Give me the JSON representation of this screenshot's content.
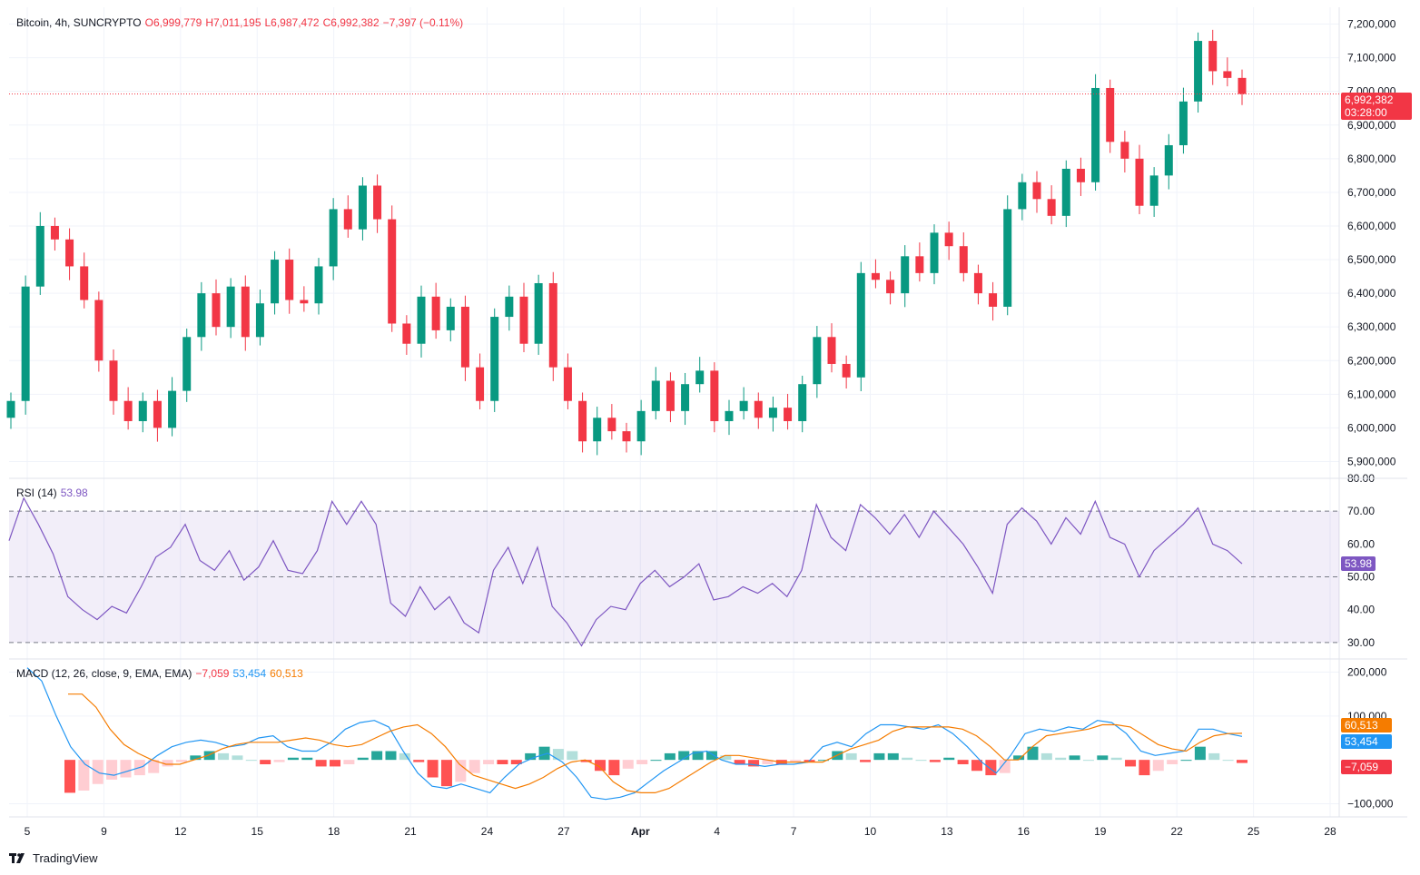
{
  "legend": {
    "symbol": "Bitcoin, 4h, SUNCRYPTO",
    "open": "O6,999,779",
    "high": "H7,011,195",
    "low": "L6,987,472",
    "close": "C6,992,382",
    "change": "−7,397 (−0.11%)"
  },
  "rsi_legend": {
    "name": "RSI (14)",
    "value": "53.98"
  },
  "macd_legend": {
    "name": "MACD (12, 26, close, 9, EMA, EMA)",
    "hist": "−7,059",
    "macd": "53,454",
    "signal": "60,513"
  },
  "badges": {
    "price": "6,992,382",
    "countdown": "03:28:00",
    "rsi": "53.98",
    "signal": "60,513",
    "macd": "53,454",
    "hist": "−7,059"
  },
  "brand": "TradingView",
  "colors": {
    "up": "#089981",
    "down": "#f23645",
    "rsi": "#7e57c2",
    "macd": "#2196f3",
    "signal": "#f57c00"
  },
  "chart_data": [
    {
      "type": "candlestick",
      "title": "Bitcoin, 4h, SUNCRYPTO",
      "ylim": [
        5850000,
        7250000
      ],
      "y_ticks": [
        "7,200,000",
        "7,100,000",
        "7,000,000",
        "6,900,000",
        "6,800,000",
        "6,700,000",
        "6,600,000",
        "6,500,000",
        "6,400,000",
        "6,300,000",
        "6,200,000",
        "6,100,000",
        "6,000,000",
        "5,900,000"
      ],
      "x_ticks": [
        "5",
        "9",
        "12",
        "15",
        "18",
        "21",
        "24",
        "27",
        "Apr",
        "4",
        "7",
        "10",
        "13",
        "16",
        "19",
        "22",
        "25",
        "28"
      ],
      "last_close": 6992382,
      "series": [
        {
          "name": "close",
          "values": [
            6080000,
            6420000,
            6600000,
            6560000,
            6480000,
            6380000,
            6200000,
            6080000,
            6020000,
            6080000,
            6000000,
            6110000,
            6270000,
            6400000,
            6300000,
            6420000,
            6270000,
            6370000,
            6500000,
            6380000,
            6370000,
            6480000,
            6650000,
            6590000,
            6720000,
            6620000,
            6310000,
            6250000,
            6390000,
            6290000,
            6360000,
            6180000,
            6080000,
            6330000,
            6390000,
            6250000,
            6430000,
            6180000,
            6080000,
            5960000,
            6030000,
            5990000,
            5960000,
            6050000,
            6140000,
            6050000,
            6130000,
            6170000,
            6020000,
            6050000,
            6080000,
            6030000,
            6060000,
            6020000,
            6130000,
            6270000,
            6190000,
            6150000,
            6460000,
            6440000,
            6400000,
            6510000,
            6460000,
            6580000,
            6540000,
            6460000,
            6400000,
            6360000,
            6650000,
            6730000,
            6680000,
            6630000,
            6770000,
            6730000,
            7010000,
            6850000,
            6800000,
            6660000,
            6750000,
            6840000,
            6970000,
            7150000,
            7060000,
            7040000,
            6992382
          ]
        }
      ]
    },
    {
      "type": "line",
      "title": "RSI (14)",
      "ylim": [
        25,
        80
      ],
      "y_ticks": [
        "80.00",
        "70.00",
        "60.00",
        "50.00",
        "40.00",
        "30.00"
      ],
      "bands": [
        30,
        50,
        70
      ],
      "series": [
        {
          "name": "RSI (14)",
          "values": [
            61,
            74,
            66,
            57,
            44,
            40,
            37,
            41,
            39,
            47,
            56,
            59,
            66,
            55,
            52,
            58,
            49,
            53,
            61,
            52,
            51,
            58,
            73,
            66,
            73,
            66,
            42,
            38,
            47,
            40,
            44,
            36,
            33,
            52,
            59,
            48,
            59,
            41,
            36,
            29,
            37,
            41,
            40,
            48,
            52,
            47,
            50,
            54,
            43,
            44,
            47,
            45,
            48,
            44,
            52,
            72,
            62,
            58,
            72,
            68,
            63,
            69,
            62,
            70,
            65,
            60,
            53,
            45,
            66,
            71,
            67,
            60,
            68,
            63,
            73,
            62,
            60,
            50,
            58,
            62,
            66,
            71,
            60,
            58,
            53.98
          ]
        }
      ]
    },
    {
      "type": "bar+line",
      "title": "MACD (12, 26, close, 9, EMA, EMA)",
      "ylim": [
        -130000,
        230000
      ],
      "y_ticks": [
        "200,000",
        "100,000",
        "−100,000"
      ],
      "series": [
        {
          "name": "MACD",
          "values": [
            210000,
            180000,
            100000,
            30000,
            -10000,
            -30000,
            -35000,
            -25000,
            -15000,
            10000,
            30000,
            40000,
            45000,
            40000,
            30000,
            35000,
            50000,
            55000,
            30000,
            20000,
            20000,
            40000,
            70000,
            85000,
            90000,
            75000,
            20000,
            -30000,
            -60000,
            -65000,
            -55000,
            -65000,
            -75000,
            -40000,
            -10000,
            5000,
            15000,
            -5000,
            -40000,
            -85000,
            -90000,
            -85000,
            -75000,
            -50000,
            -25000,
            -5000,
            15000,
            20000,
            0,
            -10000,
            -10000,
            -15000,
            -10000,
            -10000,
            -5000,
            30000,
            40000,
            30000,
            60000,
            80000,
            80000,
            75000,
            70000,
            80000,
            60000,
            30000,
            -5000,
            -30000,
            10000,
            60000,
            70000,
            65000,
            75000,
            70000,
            90000,
            85000,
            60000,
            20000,
            10000,
            15000,
            20000,
            70000,
            70000,
            60000,
            53454
          ]
        },
        {
          "name": "Signal",
          "values": [
            150000,
            150000,
            120000,
            70000,
            35000,
            15000,
            0,
            -10000,
            -10000,
            0,
            10000,
            25000,
            35000,
            40000,
            40000,
            40000,
            45000,
            50000,
            45000,
            35000,
            30000,
            35000,
            50000,
            65000,
            75000,
            80000,
            60000,
            30000,
            -10000,
            -35000,
            -45000,
            -55000,
            -65000,
            -55000,
            -40000,
            -20000,
            -5000,
            0,
            -15000,
            -50000,
            -70000,
            -75000,
            -75000,
            -65000,
            -45000,
            -25000,
            -5000,
            10000,
            10000,
            5000,
            0,
            -5000,
            -5000,
            -5000,
            -5000,
            10000,
            25000,
            35000,
            45000,
            65000,
            75000,
            75000,
            75000,
            75000,
            70000,
            55000,
            30000,
            0,
            0,
            30000,
            55000,
            60000,
            65000,
            70000,
            80000,
            80000,
            75000,
            55000,
            35000,
            25000,
            20000,
            40000,
            55000,
            60000,
            60513
          ]
        },
        {
          "name": "Histogram",
          "values": [
            -75000,
            -70000,
            -55000,
            -45000,
            -40000,
            -35000,
            -30000,
            -15000,
            -5000,
            10000,
            20000,
            15000,
            10000,
            0,
            -10000,
            -5000,
            5000,
            5000,
            -15000,
            -15000,
            -10000,
            5000,
            20000,
            20000,
            15000,
            -5000,
            -40000,
            -60000,
            -50000,
            -30000,
            -10000,
            -10000,
            -10000,
            15000,
            30000,
            25000,
            20000,
            -5000,
            -25000,
            -35000,
            -20000,
            -10000,
            0,
            15000,
            20000,
            20000,
            20000,
            10000,
            -10000,
            -15000,
            -10000,
            -10000,
            -5000,
            -5000,
            0,
            20000,
            15000,
            -5000,
            15000,
            15000,
            5000,
            0,
            -5000,
            5000,
            -10000,
            -25000,
            -35000,
            -30000,
            10000,
            30000,
            15000,
            5000,
            10000,
            0,
            10000,
            5000,
            -15000,
            -35000,
            -25000,
            -10000,
            0,
            30000,
            15000,
            0,
            -7059
          ]
        }
      ]
    }
  ]
}
